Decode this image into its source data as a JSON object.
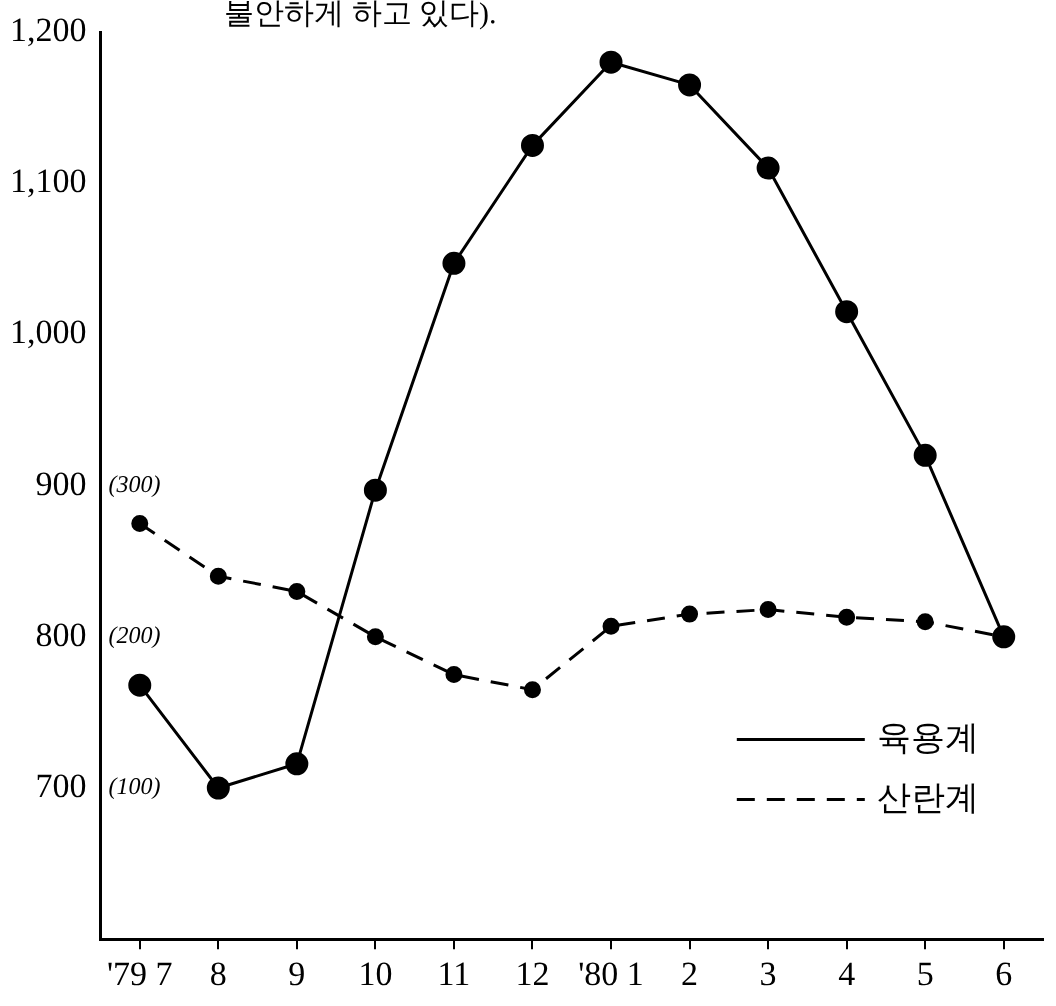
{
  "chart_data": {
    "type": "line",
    "annotations": [
      "불안하게 하고 있다)."
    ],
    "categories": [
      "'79 7",
      "8",
      "9",
      "10",
      "11",
      "12",
      "'80 1",
      "2",
      "3",
      "4",
      "5",
      "6"
    ],
    "series": [
      {
        "name": "육용계",
        "color": "#000000",
        "line_style": "solid",
        "values": [
          768,
          700,
          716,
          897,
          1047,
          1125,
          1180,
          1165,
          1110,
          1015,
          920,
          800
        ]
      },
      {
        "name": "산란계",
        "color": "#000000",
        "line_style": "dashed",
        "axis": "y2",
        "values": [
          275,
          240,
          230,
          200,
          175,
          165,
          207,
          215,
          218,
          213,
          210,
          200
        ]
      }
    ],
    "ylim": [
      600,
      1200
    ],
    "yticks": [
      {
        "value": 700,
        "label": "700"
      },
      {
        "value": 800,
        "label": "800"
      },
      {
        "value": 900,
        "label": "900"
      },
      {
        "value": 1000,
        "label": "1,000"
      },
      {
        "value": 1100,
        "label": "1,100"
      },
      {
        "value": 1200,
        "label": "1,200"
      }
    ],
    "y2lim": [
      0,
      600
    ],
    "y2ticks": [
      {
        "value": 100,
        "label": "(100)"
      },
      {
        "value": 200,
        "label": "(200)"
      },
      {
        "value": 300,
        "label": "(300)"
      }
    ],
    "marker": "circle",
    "grid": false,
    "legend": "right"
  }
}
